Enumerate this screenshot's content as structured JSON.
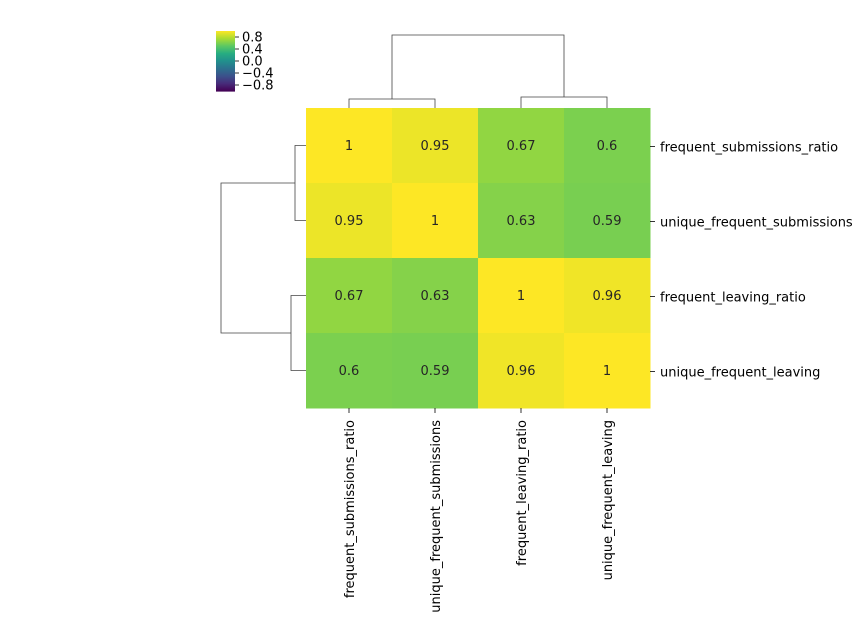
{
  "chart_data": {
    "type": "heatmap",
    "title": "",
    "rows": [
      "frequent_submissions_ratio",
      "unique_frequent_submissions",
      "frequent_leaving_ratio",
      "unique_frequent_leaving"
    ],
    "columns": [
      "frequent_submissions_ratio",
      "unique_frequent_submissions",
      "frequent_leaving_ratio",
      "unique_frequent_leaving"
    ],
    "values": [
      [
        1,
        0.95,
        0.67,
        0.6
      ],
      [
        0.95,
        1,
        0.63,
        0.59
      ],
      [
        0.67,
        0.63,
        1,
        0.96
      ],
      [
        0.6,
        0.59,
        0.96,
        1
      ]
    ],
    "cell_labels": [
      [
        "1",
        "0.95",
        "0.67",
        "0.6"
      ],
      [
        "0.95",
        "1",
        "0.63",
        "0.59"
      ],
      [
        "0.67",
        "0.63",
        "1",
        "0.96"
      ],
      [
        "0.6",
        "0.59",
        "0.96",
        "1"
      ]
    ],
    "colormap": "viridis",
    "vmin": -1,
    "vmax": 1,
    "colorbar": {
      "ticks": [
        0.8,
        0.4,
        0.0,
        -0.4,
        -0.8
      ],
      "tick_labels": [
        "0.8",
        "0.4",
        "0.0",
        "−0.4",
        "−0.8"
      ],
      "placement": "top-left"
    },
    "dendrogram": {
      "rows": "left",
      "columns": "top",
      "row_clusters": [
        [
          0,
          1
        ],
        [
          2,
          3
        ]
      ],
      "column_clusters": [
        [
          0,
          1
        ],
        [
          2,
          3
        ]
      ]
    }
  }
}
